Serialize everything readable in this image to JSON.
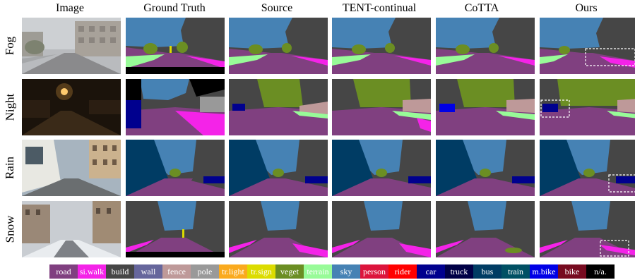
{
  "columns": [
    "Image",
    "Ground Truth",
    "Source",
    "TENT-continual",
    "CoTTA",
    "Ours"
  ],
  "rows": [
    "Fog",
    "Night",
    "Rain",
    "Snow"
  ],
  "legend": [
    {
      "label": "road",
      "color": "#804080"
    },
    {
      "label": "si.walk",
      "color": "#f423e8"
    },
    {
      "label": "build",
      "color": "#464646"
    },
    {
      "label": "wall",
      "color": "#66669c"
    },
    {
      "label": "fence",
      "color": "#be9999"
    },
    {
      "label": "pole",
      "color": "#999999"
    },
    {
      "label": "tr.light",
      "color": "#faaa1e"
    },
    {
      "label": "tr.sign",
      "color": "#dcdc00"
    },
    {
      "label": "veget",
      "color": "#6b8e23"
    },
    {
      "label": "terrain",
      "color": "#98fb98"
    },
    {
      "label": "sky",
      "color": "#4682b4"
    },
    {
      "label": "person",
      "color": "#dc143c"
    },
    {
      "label": "rider",
      "color": "#ff0000"
    },
    {
      "label": "car",
      "color": "#00008e"
    },
    {
      "label": "truck",
      "color": "#000046"
    },
    {
      "label": "bus",
      "color": "#003c64"
    },
    {
      "label": "train",
      "color": "#005064"
    },
    {
      "label": "m.bike",
      "color": "#0000e6"
    },
    {
      "label": "bike",
      "color": "#770b20"
    },
    {
      "label": "n/a.",
      "color": "#000000"
    }
  ]
}
